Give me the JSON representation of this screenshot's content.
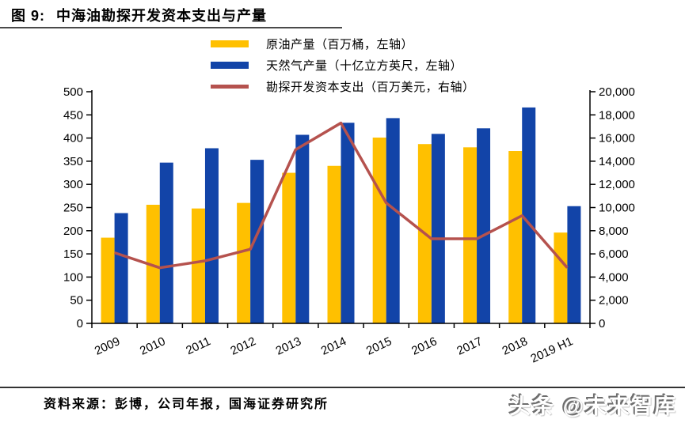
{
  "title": {
    "prefix": "图 9:",
    "text": "中海油勘探开发资本支出与产量"
  },
  "footer": {
    "source": "资料来源：彭博，公司年报，国海证券研究所",
    "watermark": "头条 @未来智库"
  },
  "colors": {
    "oil_bar": "#FFC000",
    "gas_bar": "#1244A8",
    "capex_line": "#B5524E",
    "axis": "#000000",
    "title_rule": "#4a4a4a"
  },
  "chart_data": {
    "type": "bar",
    "title": "中海油勘探开发资本支出与产量",
    "categories": [
      "2009",
      "2010",
      "2011",
      "2012",
      "2013",
      "2014",
      "2015",
      "2016",
      "2017",
      "2018",
      "2019 H1"
    ],
    "series": [
      {
        "name": "原油产量（百万桶，左轴）",
        "type": "bar",
        "axis": "left",
        "color": "#FFC000",
        "values": [
          185,
          256,
          248,
          260,
          325,
          340,
          401,
          387,
          380,
          372,
          196
        ]
      },
      {
        "name": "天然气产量（十亿立方英尺，左轴）",
        "type": "bar",
        "axis": "left",
        "color": "#1244A8",
        "values": [
          238,
          347,
          378,
          353,
          407,
          433,
          443,
          409,
          421,
          466,
          253
        ]
      },
      {
        "name": "勘探开发资本支出（百万美元，右轴）",
        "type": "line",
        "axis": "right",
        "color": "#B5524E",
        "values": [
          6100,
          4800,
          5400,
          6400,
          15000,
          17300,
          10400,
          7300,
          7300,
          9300,
          4800
        ]
      }
    ],
    "left_axis": {
      "min": 0,
      "max": 500,
      "step": 50,
      "ticks": [
        "0",
        "50",
        "100",
        "150",
        "200",
        "250",
        "300",
        "350",
        "400",
        "450",
        "500"
      ]
    },
    "right_axis": {
      "min": 0,
      "max": 20000,
      "step": 2000,
      "ticks": [
        "0",
        "2,000",
        "4,000",
        "6,000",
        "8,000",
        "10,000",
        "12,000",
        "14,000",
        "16,000",
        "18,000",
        "20,000"
      ]
    },
    "grid": false,
    "legend_position": "top"
  }
}
